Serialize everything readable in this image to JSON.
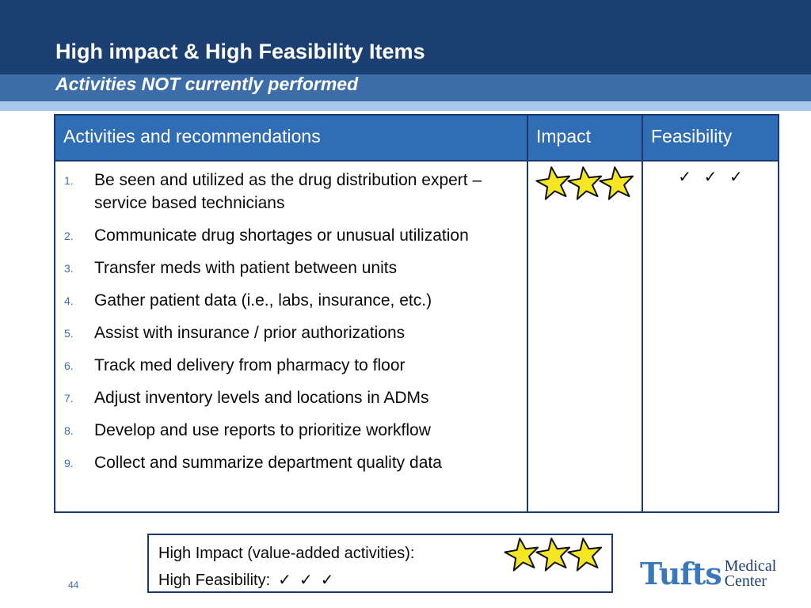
{
  "slide": {
    "title": "High impact & High Feasibility Items",
    "subtitle": "Activities NOT currently performed",
    "page_number": "44"
  },
  "table": {
    "headers": [
      "Activities and recommendations",
      "Impact",
      "Feasibility"
    ],
    "items": [
      {
        "num": "1.",
        "text": "Be seen and utilized as the drug distribution expert –service based technicians"
      },
      {
        "num": "2.",
        "text": "Communicate drug shortages or unusual utilization"
      },
      {
        "num": "3.",
        "text": "Transfer meds with patient between units"
      },
      {
        "num": "4.",
        "text": "Gather patient data (i.e., labs, insurance, etc.)"
      },
      {
        "num": "5.",
        "text": "Assist with insurance / prior authorizations"
      },
      {
        "num": "6.",
        "text": "Track med delivery from pharmacy to floor"
      },
      {
        "num": "7.",
        "text": "Adjust inventory levels and locations in ADMs"
      },
      {
        "num": "8.",
        "text": "Develop and use reports to prioritize workflow"
      },
      {
        "num": "9.",
        "text": "Collect and summarize department quality data"
      }
    ],
    "impact_stars": 3,
    "feasibility_checks": [
      "✓",
      "✓",
      "✓"
    ]
  },
  "legend": {
    "impact_label": "High Impact (value-added activities):",
    "impact_stars": 3,
    "feasibility_label": "High Feasibility:",
    "feasibility_checks": [
      "✓",
      "✓",
      "✓"
    ]
  },
  "logo": {
    "name": "Tufts",
    "line1": "Medical",
    "line2": "Center"
  },
  "colors": {
    "header_dark": "#1b3f70",
    "header_mid": "#3c6da8",
    "table_header": "#2f6db5",
    "star_fill": "#f5e623",
    "logo_blue": "#3a78bb"
  }
}
